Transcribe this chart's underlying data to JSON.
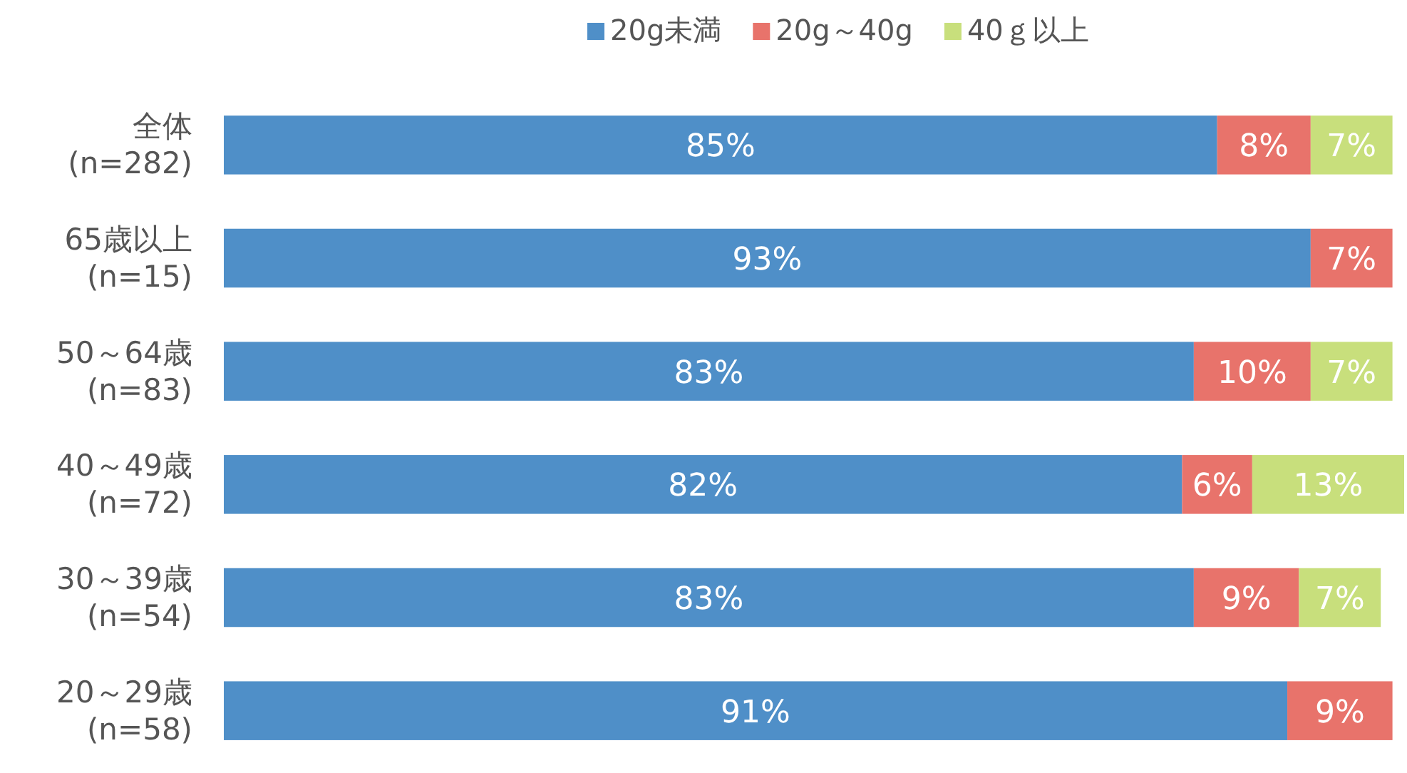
{
  "chart_data": {
    "type": "bar",
    "orientation": "horizontal",
    "stacked": true,
    "legend": "top",
    "categories": [
      "全体\n(n=282)",
      "65歳以上\n(n=15)",
      "50～64歳\n(n=83)",
      "40～49歳\n(n=72)",
      "30～39歳\n(n=54)",
      "20～29歳\n(n=58)"
    ],
    "series": [
      {
        "name": "20g未満",
        "color": "#4f8fc8",
        "values": [
          85,
          93,
          83,
          82,
          83,
          91
        ],
        "value_labels": [
          "85%",
          "93%",
          "83%",
          "82%",
          "83%",
          "91%"
        ]
      },
      {
        "name": "20g～40g",
        "color": "#e8736b",
        "values": [
          8,
          7,
          10,
          6,
          9,
          9
        ],
        "value_labels": [
          "8%",
          "7%",
          "10%",
          "6%",
          "9%",
          "9%"
        ]
      },
      {
        "name": "40ｇ以上",
        "color": "#c8df7c",
        "values": [
          7,
          null,
          7,
          13,
          7,
          null
        ],
        "value_labels": [
          "7%",
          null,
          "7%",
          "13%",
          "7%",
          null
        ]
      }
    ]
  }
}
